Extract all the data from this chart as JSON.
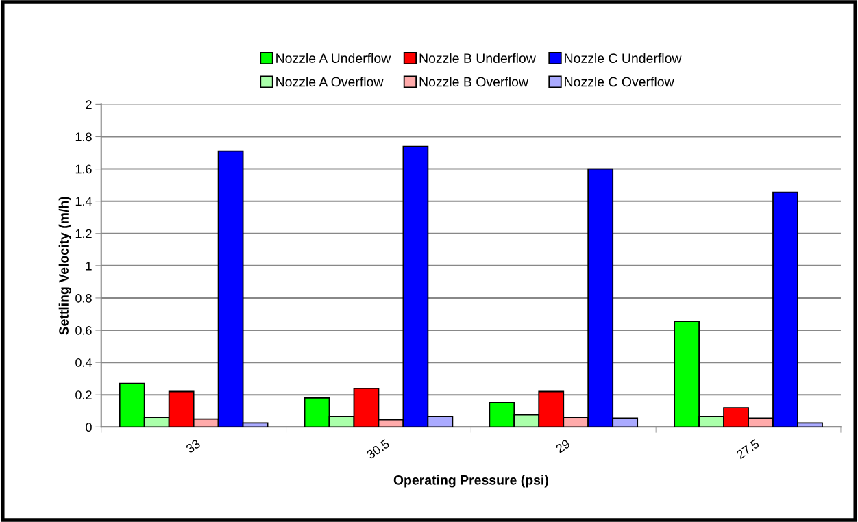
{
  "chart_data": {
    "type": "bar",
    "xlabel": "Operating Pressure (psi)",
    "ylabel": "Settling Velocity (m/h)",
    "categories": [
      "33",
      "30.5",
      "29",
      "27.5"
    ],
    "series": [
      {
        "name": "Nozzle A Underflow",
        "color": "#00ff00",
        "values": [
          0.27,
          0.18,
          0.15,
          0.655
        ]
      },
      {
        "name": "Nozzle A Overflow",
        "color": "#aaffaa",
        "values": [
          0.06,
          0.065,
          0.075,
          0.065
        ]
      },
      {
        "name": "Nozzle B Underflow",
        "color": "#ff0000",
        "values": [
          0.22,
          0.24,
          0.22,
          0.12
        ]
      },
      {
        "name": "Nozzle B Overflow",
        "color": "#ffaaaa",
        "values": [
          0.05,
          0.045,
          0.06,
          0.055
        ]
      },
      {
        "name": "Nozzle C Underflow",
        "color": "#0000ff",
        "values": [
          1.71,
          1.74,
          1.6,
          1.455
        ]
      },
      {
        "name": "Nozzle C Overflow",
        "color": "#aaaaff",
        "values": [
          0.025,
          0.065,
          0.055,
          0.025
        ]
      }
    ],
    "ylim": [
      0,
      2
    ],
    "yticks": [
      0,
      0.2,
      0.4,
      0.6,
      0.8,
      1,
      1.2,
      1.4,
      1.6,
      1.8,
      2
    ],
    "grid": "y",
    "legend": "top"
  }
}
